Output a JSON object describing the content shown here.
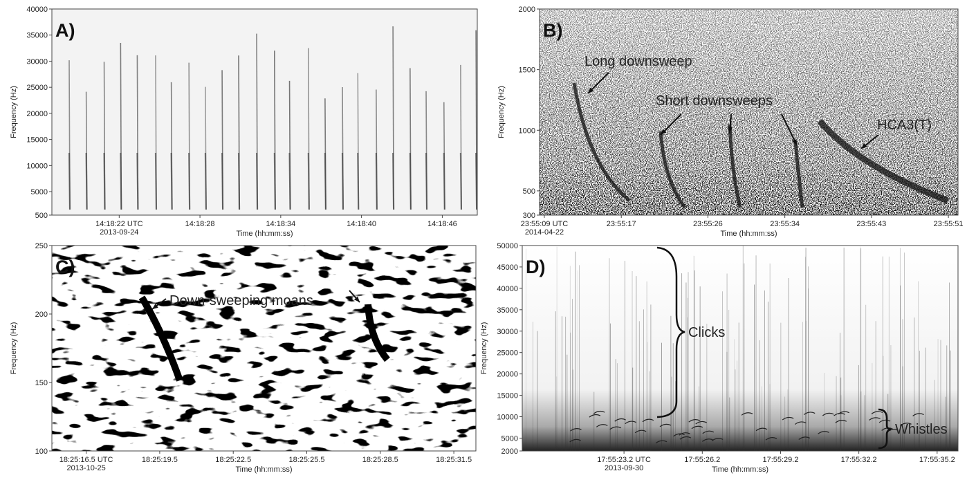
{
  "chart_data": [
    {
      "type": "spectrogram",
      "label": "A)",
      "ylabel": "Frequency (Hz)",
      "xlabel": "Time (hh:mm:ss)",
      "date": "2013-09-24",
      "ylim": [
        500,
        40000
      ],
      "yticks": [
        500,
        5000,
        10000,
        15000,
        20000,
        25000,
        30000,
        35000,
        40000
      ],
      "xlim": [
        51497,
        51528.6
      ],
      "xticks": [
        {
          "value": 51502,
          "label": "14:18:22 UTC"
        },
        {
          "value": 51508,
          "label": "14:18:28"
        },
        {
          "value": 51514,
          "label": "14:18:34"
        },
        {
          "value": 51520,
          "label": "14:18:40"
        },
        {
          "value": 51526,
          "label": "14:18:46"
        }
      ],
      "annotations": []
    },
    {
      "type": "spectrogram",
      "label": "B)",
      "ylabel": "Frequency (Hz)",
      "xlabel": "Time (hh:mm:ss)",
      "date": "2014-04-22",
      "ylim": [
        300,
        2000
      ],
      "yticks": [
        300,
        500,
        1000,
        1500,
        2000
      ],
      "xlim": [
        86108.5,
        86152
      ],
      "xticks": [
        {
          "value": 86109,
          "label": "23:55:09 UTC"
        },
        {
          "value": 86117,
          "label": "23:55:17"
        },
        {
          "value": 86126,
          "label": "23:55:26"
        },
        {
          "value": 86134,
          "label": "23:55:34"
        },
        {
          "value": 86143,
          "label": "23:55:43"
        },
        {
          "value": 86151,
          "label": "23:55:51"
        }
      ],
      "annotations": [
        "Long downsweep",
        "Short downsweeps",
        "HCA3(T)"
      ]
    },
    {
      "type": "spectrogram",
      "label": "C)",
      "ylabel": "Frequency (Hz)",
      "xlabel": "Time (hh:mm:ss)",
      "date": "2013-10-25",
      "ylim": [
        100,
        250
      ],
      "yticks": [
        100,
        150,
        200,
        250
      ],
      "xlim": [
        66315.1,
        66332.4
      ],
      "xticks": [
        {
          "value": 66316.5,
          "label": "18:25:16.5 UTC"
        },
        {
          "value": 66319.5,
          "label": "18:25:19.5"
        },
        {
          "value": 66322.5,
          "label": "18:25:22.5"
        },
        {
          "value": 66325.5,
          "label": "18:25:25.5"
        },
        {
          "value": 66328.5,
          "label": "18:25:28.5"
        },
        {
          "value": 66331.5,
          "label": "18:25:31.5"
        }
      ],
      "annotations": [
        "Down-sweeping moans"
      ]
    },
    {
      "type": "spectrogram",
      "label": "D)",
      "ylabel": "Frequency (Hz)",
      "xlabel": "Time (hh:mm:ss)",
      "date": "2013-09-30",
      "ylim": [
        2000,
        50000
      ],
      "yticks": [
        2000,
        5000,
        10000,
        15000,
        20000,
        25000,
        30000,
        35000,
        40000,
        45000,
        50000
      ],
      "xlim": [
        64519.3,
        64536
      ],
      "xticks": [
        {
          "value": 64523.2,
          "label": "17:55:23.2 UTC"
        },
        {
          "value": 64526.2,
          "label": "17:55:26.2"
        },
        {
          "value": 64529.2,
          "label": "17:55:29.2"
        },
        {
          "value": 64532.2,
          "label": "17:55:32.2"
        },
        {
          "value": 64535.2,
          "label": "17:55:35.2"
        }
      ],
      "annotations": [
        "Clicks",
        "Whistles"
      ]
    }
  ]
}
